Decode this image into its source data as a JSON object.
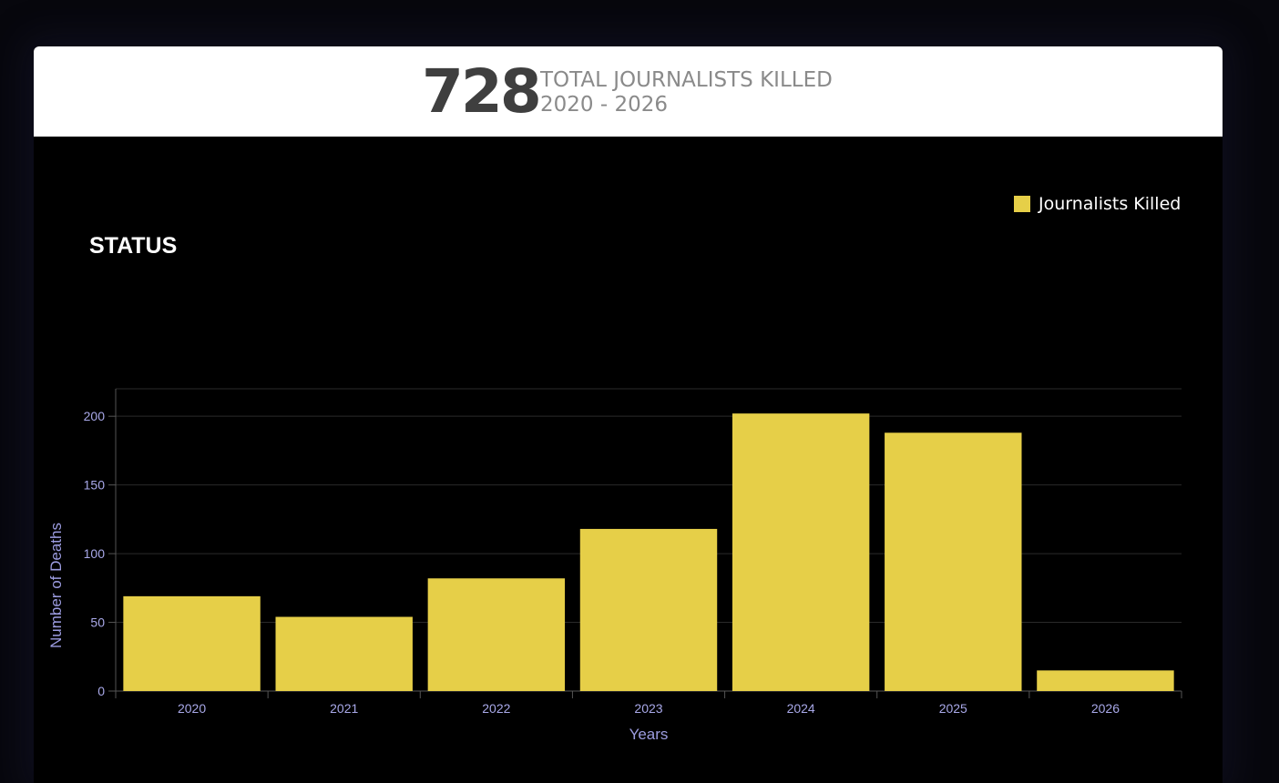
{
  "header": {
    "total": "728",
    "line1": "TOTAL JOURNALISTS KILLED",
    "line2": "2020 - 2026"
  },
  "status_title": "STATUS",
  "colors": {
    "bar": "#e6cf48",
    "grid": "#2a2a2a",
    "axis": "#555555",
    "tick_text": "#a8a8e8"
  },
  "chart_data": {
    "type": "bar",
    "categories": [
      "2020",
      "2021",
      "2022",
      "2023",
      "2024",
      "2025",
      "2026"
    ],
    "series": [
      {
        "name": "Journalists Killed",
        "values": [
          69,
          54,
          82,
          118,
          202,
          188,
          15
        ]
      }
    ],
    "title": "",
    "xlabel": "Years",
    "ylabel": "Number of Deaths",
    "ylim": [
      0,
      220
    ],
    "yticks": [
      0,
      50,
      100,
      150,
      200
    ],
    "grid": true,
    "legend": "top-right"
  }
}
